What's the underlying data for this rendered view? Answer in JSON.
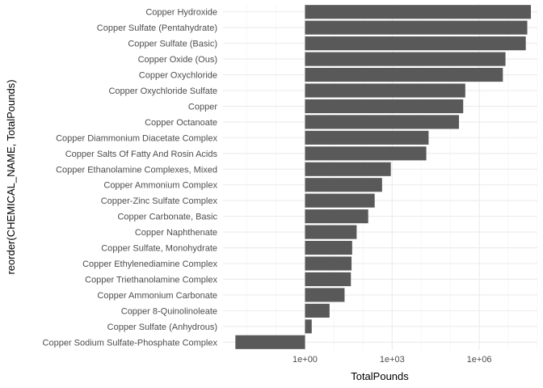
{
  "chart_data": {
    "type": "bar",
    "orientation": "horizontal",
    "xlabel": "TotalPounds",
    "ylabel": "reorder(CHEMICAL_NAME, TotalPounds)",
    "x_scale": "log10",
    "xlim": [
      0.0015,
      100000000
    ],
    "x_ticks": [
      1,
      1000,
      1000000
    ],
    "x_tick_labels": [
      "1e+00",
      "1e+03",
      "1e+06"
    ],
    "grid": true,
    "legend": "none",
    "bar_color": "#595959",
    "categories": [
      "Copper Hydroxide",
      "Copper Sulfate (Pentahydrate)",
      "Copper Sulfate (Basic)",
      "Copper Oxide (Ous)",
      "Copper Oxychloride",
      "Copper Oxychloride Sulfate",
      "Copper",
      "Copper Octanoate",
      "Copper Diammonium Diacetate Complex",
      "Copper Salts Of Fatty And Rosin Acids",
      "Copper Ethanolamine Complexes, Mixed",
      "Copper Ammonium Complex",
      "Copper-Zinc Sulfate Complex",
      "Copper Carbonate, Basic",
      "Copper Naphthenate",
      "Copper Sulfate, Monohydrate",
      "Copper Ethylenediamine Complex",
      "Copper Triethanolamine Complex",
      "Copper Ammonium Carbonate",
      "Copper 8-Quinolinoleate",
      "Copper Sulfate (Anhydrous)",
      "Copper Sodium Sulfate-Phosphate Complex"
    ],
    "values": [
      60000000,
      45000000,
      40000000,
      8000000,
      6500000,
      330000,
      280000,
      200000,
      18000,
      15000,
      900,
      450,
      250,
      150,
      60,
      42,
      40,
      38,
      23,
      7,
      1.7,
      0.004
    ]
  }
}
